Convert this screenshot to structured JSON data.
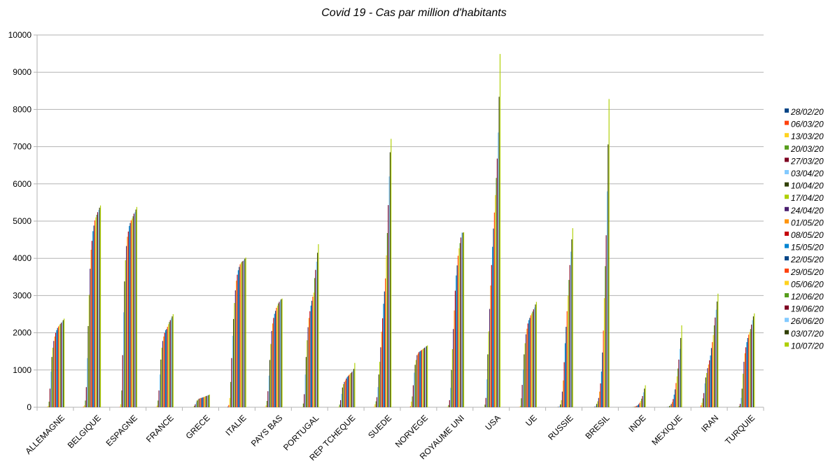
{
  "chart_data": {
    "type": "bar",
    "title": "Covid 19 - Cas par million d'habitants",
    "xlabel": "",
    "ylabel": "",
    "ylim": [
      0,
      10000
    ],
    "yticks": [
      0,
      1000,
      2000,
      3000,
      4000,
      5000,
      6000,
      7000,
      8000,
      9000,
      10000
    ],
    "grid": true,
    "legend_position": "right",
    "categories": [
      "ALLEMAGNE",
      "BELGIQUE",
      "ESPAGNE",
      "FRANCE",
      "GRECE",
      "ITALIE",
      "PAYS BAS",
      "PORTUGAL",
      "REP TCHEQUE",
      "SUEDE",
      "NORVEGE",
      "ROYAUME UNI",
      "USA",
      "UE",
      "RUSSIE",
      "BRESIL",
      "INDE",
      "MEXIQUE",
      "IRAN",
      "TURQUIE"
    ],
    "series": [
      {
        "name": "28/02/20",
        "color": "#004586",
        "values": [
          0,
          0,
          0,
          0,
          0,
          15,
          0,
          0,
          0,
          0,
          0,
          0,
          0,
          0,
          0,
          0,
          0,
          0,
          5,
          0
        ]
      },
      {
        "name": "06/03/20",
        "color": "#ff420e",
        "values": [
          5,
          15,
          10,
          5,
          2,
          60,
          5,
          0,
          0,
          10,
          25,
          2,
          1,
          5,
          0,
          0,
          0,
          0,
          50,
          0
        ]
      },
      {
        "name": "13/03/20",
        "color": "#ffd320",
        "values": [
          30,
          50,
          80,
          45,
          10,
          250,
          50,
          10,
          15,
          80,
          150,
          15,
          5,
          40,
          0,
          0,
          0,
          0,
          120,
          0
        ]
      },
      {
        "name": "20/03/20",
        "color": "#579d1c",
        "values": [
          150,
          180,
          450,
          180,
          40,
          680,
          170,
          100,
          70,
          160,
          290,
          60,
          70,
          240,
          5,
          3,
          0,
          2,
          240,
          30
        ]
      },
      {
        "name": "27/03/20",
        "color": "#7e0021",
        "values": [
          500,
          540,
          1400,
          450,
          80,
          1320,
          430,
          350,
          190,
          270,
          590,
          190,
          250,
          600,
          10,
          15,
          1,
          5,
          380,
          90
        ]
      },
      {
        "name": "03/04/20",
        "color": "#83caff",
        "values": [
          960,
          1320,
          2550,
          880,
          130,
          1920,
          850,
          880,
          360,
          540,
          930,
          520,
          750,
          1020,
          30,
          45,
          2,
          15,
          640,
          250
        ]
      },
      {
        "name": "10/04/20",
        "color": "#314004",
        "values": [
          1350,
          2180,
          3380,
          1280,
          180,
          2370,
          1270,
          1350,
          530,
          880,
          1140,
          1000,
          1420,
          1420,
          75,
          90,
          5,
          30,
          800,
          500
        ]
      },
      {
        "name": "17/04/20",
        "color": "#aecf00",
        "values": [
          1600,
          3020,
          3950,
          1600,
          210,
          2800,
          1700,
          1800,
          620,
          1220,
          1270,
          1560,
          2040,
          1720,
          190,
          160,
          10,
          50,
          920,
          900
        ]
      },
      {
        "name": "24/04/20",
        "color": "#4b1f6f",
        "values": [
          1780,
          3720,
          4330,
          1780,
          230,
          3140,
          2050,
          2150,
          680,
          1610,
          1400,
          2100,
          2640,
          1960,
          420,
          250,
          18,
          90,
          1050,
          1220
        ]
      },
      {
        "name": "01/05/20",
        "color": "#ff950e",
        "values": [
          1900,
          4230,
          4580,
          1900,
          240,
          3400,
          2250,
          2400,
          720,
          2030,
          1440,
          2600,
          3270,
          2110,
          720,
          420,
          28,
          140,
          1150,
          1450
        ]
      },
      {
        "name": "08/05/20",
        "color": "#c5000b",
        "values": [
          2000,
          4470,
          4720,
          2000,
          250,
          3560,
          2400,
          2580,
          770,
          2390,
          1480,
          3130,
          3820,
          2250,
          1210,
          640,
          40,
          220,
          1260,
          1610
        ]
      },
      {
        "name": "15/05/20",
        "color": "#0084d1",
        "values": [
          2070,
          4730,
          4870,
          2070,
          255,
          3680,
          2510,
          2730,
          810,
          2780,
          1500,
          3540,
          4310,
          2340,
          1720,
          960,
          60,
          340,
          1390,
          1750
        ]
      },
      {
        "name": "22/05/20",
        "color": "#004586",
        "values": [
          2130,
          4880,
          4950,
          2100,
          265,
          3770,
          2590,
          2860,
          840,
          3110,
          1520,
          3810,
          4800,
          2400,
          2160,
          1470,
          85,
          480,
          1590,
          1860
        ]
      },
      {
        "name": "29/05/20",
        "color": "#ff420e",
        "values": [
          2170,
          5020,
          5020,
          2160,
          275,
          3840,
          2670,
          2970,
          870,
          3460,
          1540,
          4070,
          5230,
          2470,
          2580,
          2060,
          120,
          650,
          1750,
          1950
        ]
      },
      {
        "name": "05/06/20",
        "color": "#ffd320",
        "values": [
          2210,
          5100,
          5070,
          2230,
          285,
          3880,
          2730,
          3080,
          900,
          4080,
          1560,
          4270,
          5700,
          2520,
          3000,
          2930,
          170,
          830,
          1940,
          2020
        ]
      },
      {
        "name": "12/06/20",
        "color": "#579d1c",
        "values": [
          2240,
          5170,
          5130,
          2290,
          295,
          3910,
          2790,
          3470,
          920,
          4680,
          1580,
          4410,
          6160,
          2570,
          3420,
          3790,
          230,
          1040,
          2200,
          2100
        ]
      },
      {
        "name": "19/06/20",
        "color": "#7e0021",
        "values": [
          2270,
          5240,
          5200,
          2340,
          305,
          3930,
          2830,
          3690,
          950,
          5430,
          1600,
          4560,
          6680,
          2630,
          3820,
          4620,
          300,
          1280,
          2410,
          2220
        ]
      },
      {
        "name": "26/06/20",
        "color": "#83caff",
        "values": [
          2300,
          5300,
          5240,
          2390,
          315,
          3960,
          2870,
          3910,
          980,
          6200,
          1620,
          4690,
          7380,
          2680,
          4180,
          5800,
          400,
          1570,
          2620,
          2340
        ]
      },
      {
        "name": "03/07/20",
        "color": "#314004",
        "values": [
          2340,
          5360,
          5310,
          2440,
          325,
          3990,
          2900,
          4150,
          1030,
          6850,
          1640,
          4690,
          8340,
          2760,
          4510,
          7060,
          500,
          1860,
          2840,
          2440
        ]
      },
      {
        "name": "10/07/20",
        "color": "#aecf00",
        "values": [
          2380,
          5420,
          5380,
          2500,
          340,
          4020,
          2920,
          4380,
          1190,
          7210,
          1660,
          4700,
          9490,
          2830,
          4810,
          8280,
          590,
          2200,
          3050,
          2520
        ]
      }
    ]
  }
}
